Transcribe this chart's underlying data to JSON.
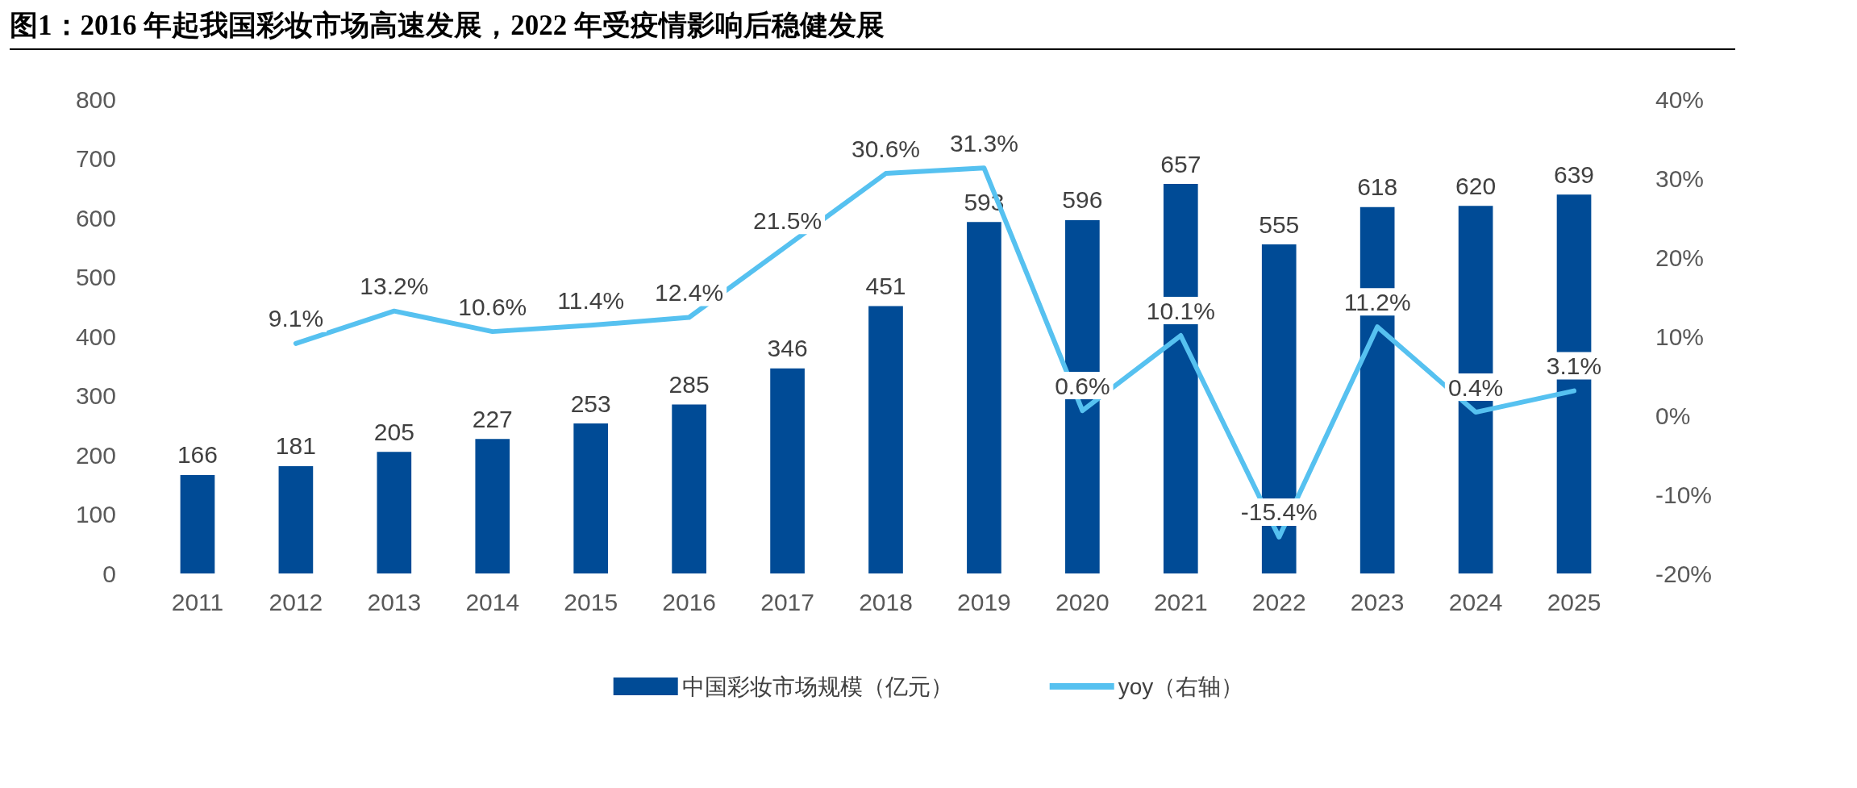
{
  "chart_data": {
    "type": "bar",
    "title": "图1：2016 年起我国彩妆市场高速发展，2022 年受疫情影响后稳健发展",
    "categories": [
      "2011",
      "2012",
      "2013",
      "2014",
      "2015",
      "2016",
      "2017",
      "2018",
      "2019",
      "2020",
      "2021",
      "2022",
      "2023",
      "2024",
      "2025"
    ],
    "series": [
      {
        "name": "中国彩妆市场规模（亿元）",
        "color": "#004b96",
        "values": [
          166,
          181,
          205,
          227,
          253,
          285,
          346,
          451,
          593,
          596,
          657,
          555,
          618,
          620,
          639
        ],
        "data_labels": true
      },
      {
        "name": "yoy（右轴）",
        "type": "line",
        "axis": "y2",
        "color": "#56c1f0",
        "marker": "none",
        "values": [
          null,
          9.1,
          13.2,
          10.6,
          11.4,
          12.4,
          21.5,
          30.6,
          31.3,
          0.6,
          10.1,
          -15.4,
          11.2,
          0.4,
          3.1
        ],
        "value_labels": [
          null,
          "9.1%",
          "13.2%",
          "10.6%",
          "11.4%",
          "12.4%",
          "21.5%",
          "30.6%",
          "31.3%",
          "0.6%",
          "10.1%",
          "-15.4%",
          "11.2%",
          "0.4%",
          "3.1%"
        ]
      }
    ],
    "ylim": [
      0,
      800
    ],
    "yticks": [
      0,
      100,
      200,
      300,
      400,
      500,
      600,
      700,
      800
    ],
    "y2lim": [
      -20,
      40
    ],
    "y2ticks": [
      {
        "value": -20,
        "label": "-20%"
      },
      {
        "value": -10,
        "label": "-10%"
      },
      {
        "value": 0,
        "label": "0%"
      },
      {
        "value": 10,
        "label": "10%"
      },
      {
        "value": 20,
        "label": "20%"
      },
      {
        "value": 30,
        "label": "30%"
      },
      {
        "value": 40,
        "label": "40%"
      }
    ],
    "grid": false,
    "legend": "bottom"
  }
}
